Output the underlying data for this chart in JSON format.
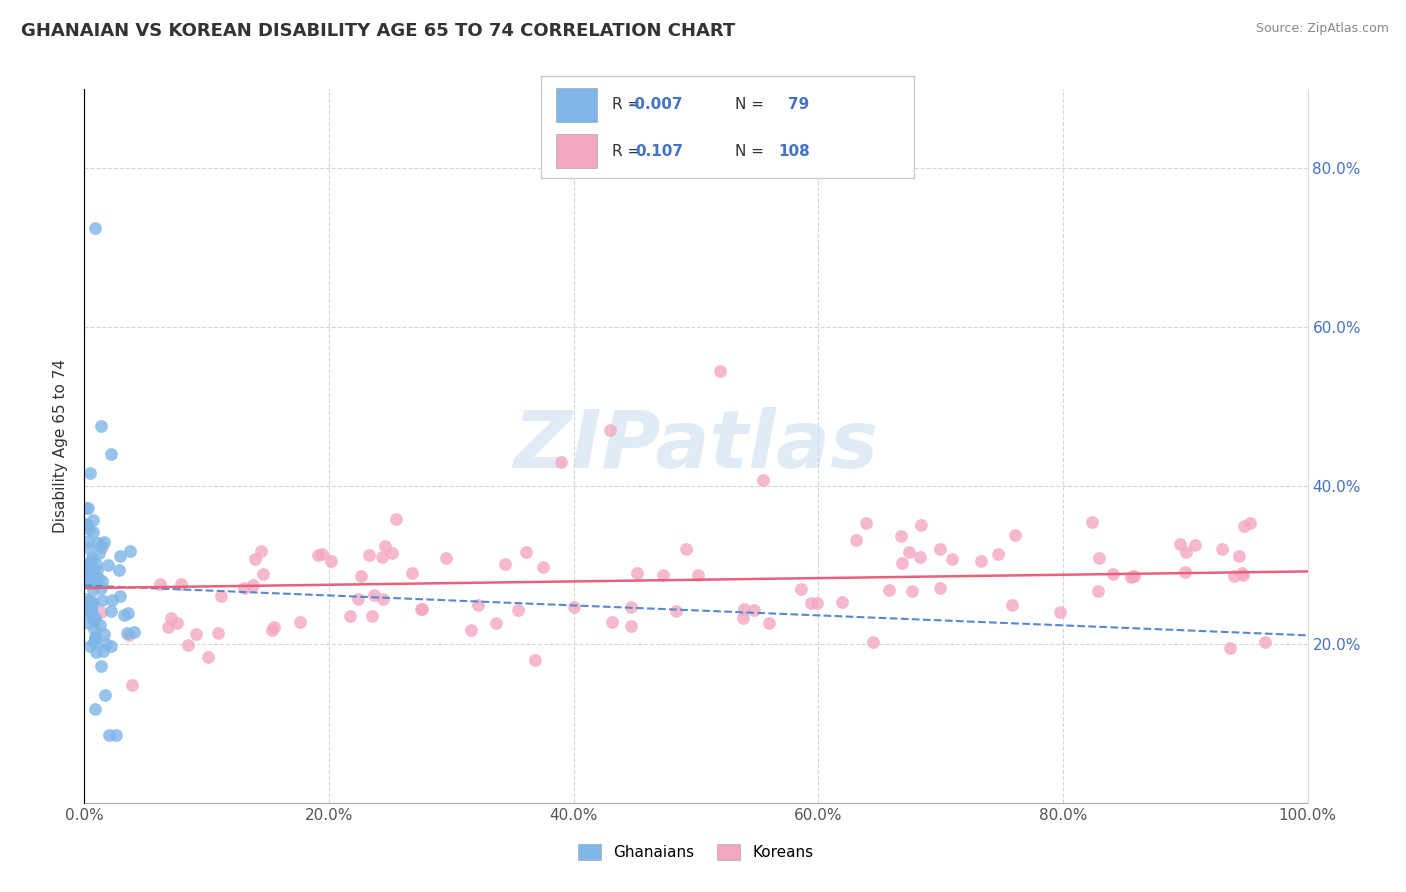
{
  "title": "GHANAIAN VS KOREAN DISABILITY AGE 65 TO 74 CORRELATION CHART",
  "source": "Source: ZipAtlas.com",
  "ylabel": "Disability Age 65 to 74",
  "xlim": [
    0.0,
    1.0
  ],
  "ylim": [
    0.0,
    0.9
  ],
  "x_ticks": [
    0.0,
    0.2,
    0.4,
    0.6,
    0.8,
    1.0
  ],
  "x_tick_labels": [
    "0.0%",
    "20.0%",
    "40.0%",
    "60.0%",
    "80.0%",
    "100.0%"
  ],
  "y_ticks": [
    0.2,
    0.4,
    0.6,
    0.8
  ],
  "y_tick_labels": [
    "20.0%",
    "40.0%",
    "60.0%",
    "80.0%"
  ],
  "ghanaian_color": "#7eb6e8",
  "korean_color": "#f4a8c0",
  "ghanaian_line_color": "#5588cc",
  "korean_line_color": "#e8607a",
  "R_ghanaian": -0.007,
  "N_ghanaian": 79,
  "R_korean": 0.107,
  "N_korean": 108,
  "legend_text_color": "#4472c4",
  "legend_label_color": "#333333",
  "watermark": "ZIPatlas",
  "title_fontsize": 13,
  "tick_fontsize": 11,
  "ylabel_fontsize": 11
}
